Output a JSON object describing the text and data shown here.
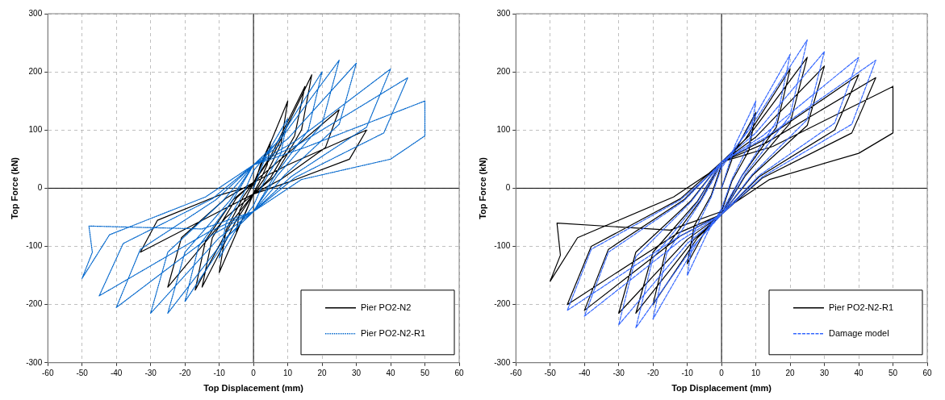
{
  "chart_data": [
    {
      "type": "line",
      "xlabel": "Top Displacement (mm)",
      "ylabel": "Top Force (kN)",
      "xlim": [
        -60,
        60
      ],
      "ylim": [
        -300,
        300
      ],
      "xticks": [
        -60,
        -50,
        -40,
        -30,
        -20,
        -10,
        0,
        10,
        20,
        30,
        40,
        50,
        60
      ],
      "yticks": [
        -300,
        -200,
        -100,
        0,
        100,
        200,
        300
      ],
      "grid": true,
      "legend": "bottom right",
      "marker": "none",
      "series": [
        {
          "name": "Pier PO2-N2",
          "color": "#000000",
          "line_style": "solid",
          "x": [
            0,
            2,
            5,
            4,
            1.5,
            0,
            -2,
            -5,
            -4,
            -1.5,
            0,
            3,
            10,
            8,
            3,
            0,
            -3,
            -10,
            -8,
            -3,
            0,
            5,
            15,
            12,
            5,
            0,
            -5,
            -15,
            -12,
            -5,
            0,
            6,
            17,
            14,
            6,
            0,
            -6,
            -17,
            -14,
            -6,
            0,
            8,
            25,
            21,
            8,
            0,
            -8,
            -25,
            -21,
            -8,
            0,
            10,
            33,
            28,
            10,
            0,
            -10,
            -33,
            -28,
            -10,
            0
          ],
          "values": [
            0,
            40,
            80,
            40,
            8,
            -8,
            -38,
            -75,
            -38,
            -8,
            8,
            50,
            150,
            75,
            15,
            -10,
            -50,
            -145,
            -72,
            -15,
            10,
            55,
            175,
            90,
            18,
            -10,
            -55,
            -170,
            -85,
            -17,
            10,
            60,
            195,
            100,
            20,
            -10,
            -55,
            -175,
            -90,
            -20,
            10,
            50,
            135,
            70,
            15,
            -10,
            -50,
            -170,
            -85,
            -17,
            10,
            40,
            100,
            50,
            10,
            -10,
            -40,
            -110,
            -55,
            -12,
            5
          ]
        },
        {
          "name": "Pier PO2-N2-R1",
          "color": "#0066cc",
          "line_style": "dotted",
          "x": [
            0,
            4,
            10,
            8,
            3,
            0,
            -4,
            -10,
            -8,
            -3,
            0,
            7,
            20,
            16,
            6,
            0,
            -7,
            -20,
            -16,
            -6,
            0,
            8,
            25,
            20,
            7,
            0,
            -8,
            -25,
            -20,
            -7,
            0,
            10,
            30,
            25,
            9,
            0,
            -10,
            -30,
            -25,
            -9,
            0,
            12,
            40,
            33,
            11,
            0,
            -12,
            -40,
            -33,
            -11,
            0,
            13,
            45,
            38,
            12,
            0,
            -13,
            -45,
            -38,
            -12,
            0,
            15,
            50,
            50,
            40,
            14,
            0,
            -15,
            -48,
            -47,
            -50,
            -42,
            -14,
            0
          ],
          "values": [
            0,
            60,
            120,
            60,
            10,
            -30,
            -60,
            -120,
            -60,
            -10,
            30,
            80,
            200,
            100,
            20,
            -40,
            -80,
            -195,
            -100,
            -20,
            40,
            85,
            220,
            110,
            22,
            -40,
            -85,
            -215,
            -110,
            -22,
            40,
            85,
            215,
            110,
            22,
            -40,
            -85,
            -215,
            -110,
            -22,
            40,
            80,
            205,
            105,
            20,
            -40,
            -80,
            -205,
            -105,
            -20,
            40,
            75,
            190,
            95,
            18,
            -40,
            -75,
            -185,
            -95,
            -18,
            40,
            70,
            150,
            90,
            50,
            15,
            -40,
            -70,
            -65,
            -110,
            -155,
            -80,
            -15,
            40
          ]
        }
      ]
    },
    {
      "type": "line",
      "xlabel": "Top Displacement (mm)",
      "ylabel": "Top Force (kN)",
      "xlim": [
        -60,
        60
      ],
      "ylim": [
        -300,
        300
      ],
      "xticks": [
        -60,
        -50,
        -40,
        -30,
        -20,
        -10,
        0,
        10,
        20,
        30,
        40,
        50,
        60
      ],
      "yticks": [
        -300,
        -200,
        -100,
        0,
        100,
        200,
        300
      ],
      "grid": true,
      "legend": "bottom right",
      "marker": "none",
      "series": [
        {
          "name": "Pier PO2-N2-R1",
          "color": "#000000",
          "line_style": "solid",
          "x": [
            0,
            4,
            10,
            8,
            3,
            0,
            -4,
            -10,
            -8,
            -3,
            0,
            7,
            20,
            16,
            6,
            0,
            -7,
            -20,
            -16,
            -6,
            0,
            8,
            25,
            20,
            7,
            0,
            -8,
            -25,
            -20,
            -7,
            0,
            10,
            30,
            25,
            9,
            0,
            -10,
            -30,
            -25,
            -9,
            0,
            12,
            40,
            33,
            11,
            0,
            -12,
            -40,
            -33,
            -11,
            0,
            13,
            45,
            38,
            12,
            0,
            -13,
            -45,
            -38,
            -12,
            0,
            15,
            50,
            50,
            40,
            14,
            0,
            -15,
            -48,
            -47,
            -50,
            -42,
            -14,
            0
          ],
          "values": [
            0,
            65,
            130,
            65,
            12,
            -40,
            -65,
            -130,
            -65,
            -12,
            40,
            85,
            205,
            105,
            22,
            -45,
            -85,
            -200,
            -100,
            -20,
            45,
            90,
            225,
            112,
            22,
            -45,
            -88,
            -215,
            -110,
            -22,
            45,
            88,
            210,
            108,
            22,
            -45,
            -88,
            -215,
            -110,
            -22,
            45,
            82,
            195,
            100,
            20,
            -45,
            -82,
            -210,
            -105,
            -20,
            45,
            78,
            190,
            95,
            18,
            -45,
            -78,
            -200,
            -100,
            -18,
            45,
            72,
            175,
            95,
            60,
            15,
            -40,
            -72,
            -60,
            -115,
            -160,
            -85,
            -15,
            40
          ]
        },
        {
          "name": "Damage model",
          "color": "#3366ff",
          "line_style": "dashed",
          "x": [
            0,
            4,
            10,
            8,
            3,
            0,
            -4,
            -10,
            -8,
            -3,
            0,
            7,
            20,
            16,
            6,
            0,
            -7,
            -20,
            -16,
            -6,
            0,
            8,
            25,
            20,
            7,
            0,
            -8,
            -25,
            -20,
            -7,
            0,
            10,
            30,
            25,
            9,
            0,
            -10,
            -30,
            -25,
            -9,
            0,
            12,
            40,
            33,
            11,
            0,
            -12,
            -40,
            -33,
            -11,
            0,
            13,
            45,
            38,
            12,
            0,
            -13,
            -45,
            -38,
            -12,
            0
          ],
          "values": [
            0,
            75,
            150,
            75,
            15,
            -35,
            -75,
            -150,
            -75,
            -15,
            35,
            95,
            230,
            115,
            22,
            -40,
            -92,
            -225,
            -112,
            -22,
            40,
            100,
            255,
            125,
            25,
            -45,
            -98,
            -240,
            -120,
            -24,
            45,
            95,
            235,
            118,
            24,
            -45,
            -95,
            -235,
            -118,
            -24,
            45,
            90,
            225,
            112,
            22,
            -45,
            -90,
            -220,
            -110,
            -22,
            45,
            88,
            220,
            110,
            20,
            -45,
            -85,
            -210,
            -105,
            -20,
            40
          ]
        }
      ]
    }
  ]
}
